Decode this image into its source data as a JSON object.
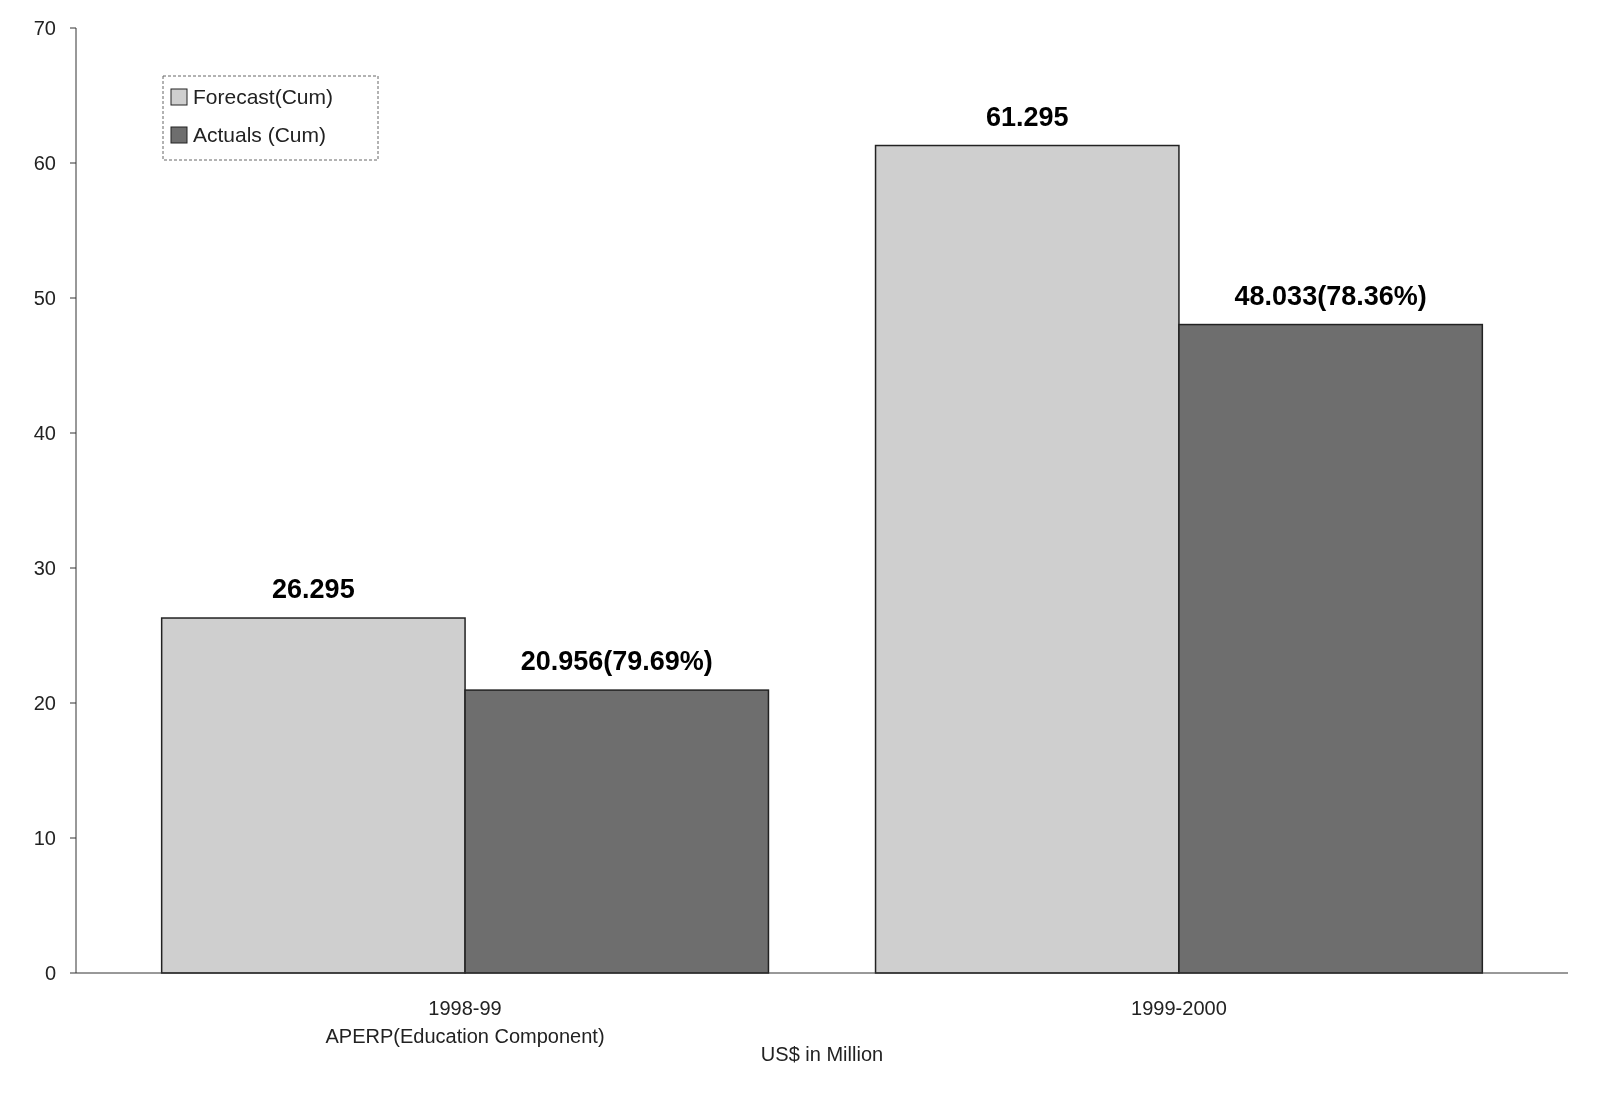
{
  "chart_data": {
    "type": "bar",
    "xlabel": "US$ in Million",
    "categories": [
      "1998-99\nAPERP(Education Component)",
      "1999-2000"
    ],
    "series": [
      {
        "name": "Forecast(Cum)",
        "color": "#cfcfcf",
        "values": [
          26.295,
          61.295
        ],
        "value_labels": [
          "26.295",
          "61.295"
        ]
      },
      {
        "name": "Actuals (Cum)",
        "color": "#6e6e6e",
        "values": [
          20.956,
          48.033
        ],
        "value_labels": [
          "20.956(79.69%)",
          "48.033(78.36%)"
        ]
      }
    ],
    "ylim": [
      0,
      70
    ],
    "yticks": [
      0,
      10,
      20,
      30,
      40,
      50,
      60,
      70
    ],
    "legend": "top left"
  }
}
